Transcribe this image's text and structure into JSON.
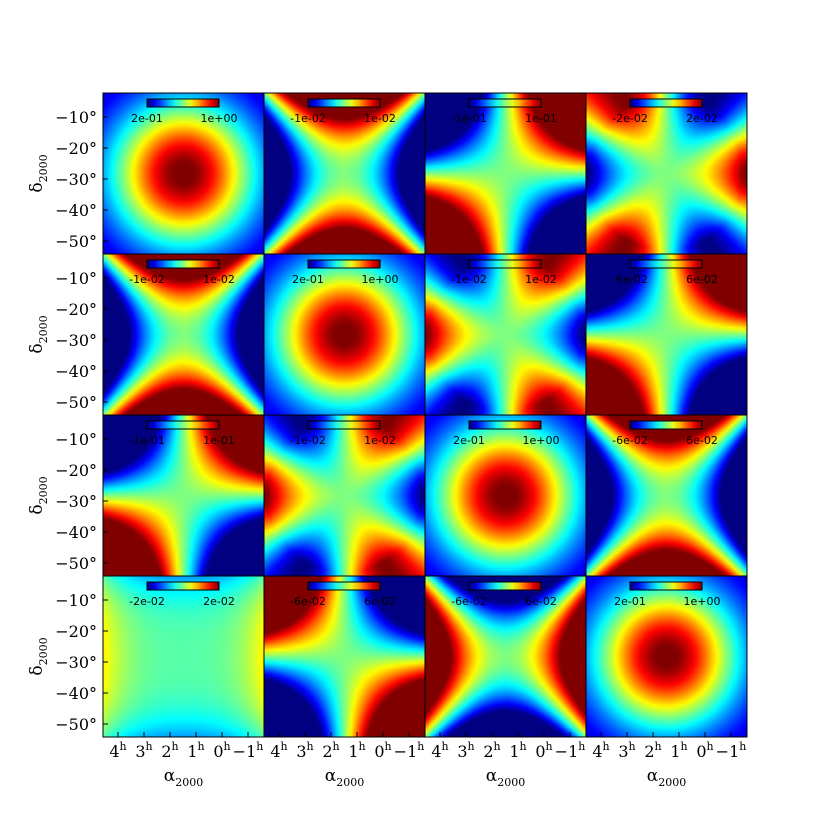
{
  "chart_data": {
    "type": "heatmap",
    "layout": "4x4 grid",
    "colormap": "jet",
    "yticks": [
      "−10°",
      "−20°",
      "−30°",
      "−40°",
      "−50°"
    ],
    "xticks": [
      "4",
      "3",
      "2",
      "1",
      "0",
      "−1"
    ],
    "xtick_suffix": "h",
    "ylabel": {
      "main": "δ",
      "sub": "2000"
    },
    "xlabel": {
      "main": "α",
      "sub": "2000"
    },
    "panels": [
      {
        "row": 0,
        "col": 0,
        "colorbar": {
          "min": "2e-01",
          "max": "1e+00"
        },
        "pattern": "blob"
      },
      {
        "row": 0,
        "col": 1,
        "colorbar": {
          "min": "-1e-02",
          "max": "1e-02"
        },
        "pattern": "quad",
        "sign": 1
      },
      {
        "row": 0,
        "col": 2,
        "colorbar": {
          "min": "-1e-01",
          "max": "1e-01"
        },
        "pattern": "diag",
        "sign": 1
      },
      {
        "row": 0,
        "col": 3,
        "colorbar": {
          "min": "-2e-02",
          "max": "2e-02"
        },
        "pattern": "edge",
        "sign": 1
      },
      {
        "row": 1,
        "col": 0,
        "colorbar": {
          "min": "-1e-02",
          "max": "1e-02"
        },
        "pattern": "quad",
        "sign": 1
      },
      {
        "row": 1,
        "col": 1,
        "colorbar": {
          "min": "2e-01",
          "max": "1e+00"
        },
        "pattern": "blob"
      },
      {
        "row": 1,
        "col": 2,
        "colorbar": {
          "min": "-1e-02",
          "max": "1e-02"
        },
        "pattern": "edge",
        "sign": -1
      },
      {
        "row": 1,
        "col": 3,
        "colorbar": {
          "min": "-6e-02",
          "max": "6e-02"
        },
        "pattern": "diag",
        "sign": 1
      },
      {
        "row": 2,
        "col": 0,
        "colorbar": {
          "min": "-1e-01",
          "max": "1e-01"
        },
        "pattern": "diag",
        "sign": 1
      },
      {
        "row": 2,
        "col": 1,
        "colorbar": {
          "min": "-1e-02",
          "max": "1e-02"
        },
        "pattern": "edge",
        "sign": -1
      },
      {
        "row": 2,
        "col": 2,
        "colorbar": {
          "min": "2e-01",
          "max": "1e+00"
        },
        "pattern": "blob"
      },
      {
        "row": 2,
        "col": 3,
        "colorbar": {
          "min": "-6e-02",
          "max": "6e-02"
        },
        "pattern": "quad",
        "sign": 1
      },
      {
        "row": 3,
        "col": 0,
        "colorbar": {
          "min": "-2e-02",
          "max": "2e-02"
        },
        "pattern": "flat",
        "sign": 1
      },
      {
        "row": 3,
        "col": 1,
        "colorbar": {
          "min": "-6e-02",
          "max": "6e-02"
        },
        "pattern": "diag",
        "sign": -1
      },
      {
        "row": 3,
        "col": 2,
        "colorbar": {
          "min": "-6e-02",
          "max": "6e-02"
        },
        "pattern": "quad",
        "sign": -1
      },
      {
        "row": 3,
        "col": 3,
        "colorbar": {
          "min": "2e-01",
          "max": "1e+00"
        },
        "pattern": "blob"
      }
    ]
  }
}
